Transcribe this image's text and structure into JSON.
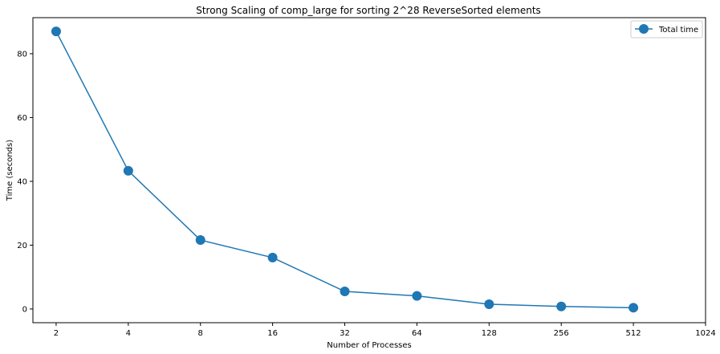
{
  "chart_data": {
    "type": "line",
    "title": "Strong Scaling of comp_large for sorting 2^28 ReverseSorted elements",
    "xlabel": "Number of Processes",
    "ylabel": "Time (seconds)",
    "x_scale": "log2",
    "x_ticks": [
      "2",
      "4",
      "8",
      "16",
      "32",
      "64",
      "128",
      "256",
      "512",
      "1024"
    ],
    "y_ticks": [
      "0",
      "20",
      "40",
      "60",
      "80"
    ],
    "xlim": [
      1.6,
      1024
    ],
    "ylim": [
      -4.3,
      91.3
    ],
    "grid": false,
    "legend_position": "top-right",
    "series": [
      {
        "name": "Total time",
        "color": "#1f77b4",
        "marker": "circle",
        "x": [
          2,
          4,
          8,
          16,
          32,
          64,
          128,
          256,
          512
        ],
        "y": [
          87.0,
          43.3,
          21.6,
          16.1,
          5.5,
          4.1,
          1.5,
          0.8,
          0.4
        ]
      }
    ]
  }
}
